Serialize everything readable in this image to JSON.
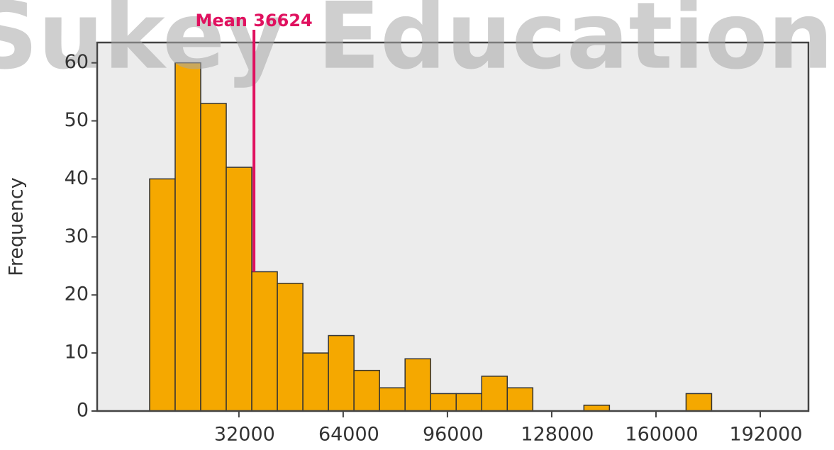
{
  "chart_data": {
    "type": "histogram",
    "watermark": "Sukey Education",
    "ylabel": "Frequency",
    "bins": [
      4600,
      12440,
      20280,
      28120,
      35960,
      43800,
      51640,
      59480,
      67320,
      75160,
      83000,
      90840,
      98680,
      106520,
      114360,
      122200,
      130040,
      137880,
      145720,
      153560,
      161400,
      169240,
      177080
    ],
    "values": [
      40,
      60,
      53,
      42,
      24,
      22,
      10,
      13,
      7,
      4,
      9,
      3,
      3,
      6,
      4,
      0,
      0,
      1,
      0,
      0,
      0,
      3
    ],
    "color": "#f5a800",
    "mean": {
      "value": 36624,
      "label": "Mean 36624"
    },
    "mean_color": "#e0115f",
    "xlim": [
      -11500,
      206800
    ],
    "ylim": [
      0,
      63.5
    ],
    "xticks": [
      32000,
      64000,
      96000,
      128000,
      160000,
      192000
    ],
    "yticks": [
      0,
      10,
      20,
      30,
      40,
      50,
      60
    ]
  }
}
